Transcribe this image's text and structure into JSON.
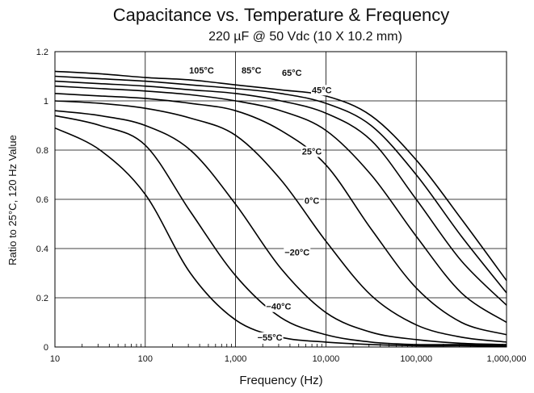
{
  "chart_data": {
    "type": "line",
    "title": "Capacitance vs. Temperature & Frequency",
    "subtitle": "220 µF @ 50 Vdc (10 X 10.2 mm)",
    "xlabel": "Frequency (Hz)",
    "ylabel": "Ratio to 25°C, 120 Hz Value",
    "x_scale": "log",
    "xlim": [
      10,
      1000000
    ],
    "ylim": [
      0,
      1.2
    ],
    "x_ticks": [
      {
        "value": 10,
        "label": "10"
      },
      {
        "value": 100,
        "label": "100"
      },
      {
        "value": 1000,
        "label": "1,000"
      },
      {
        "value": 10000,
        "label": "10,000"
      },
      {
        "value": 100000,
        "label": "100,000"
      },
      {
        "value": 1000000,
        "label": "1,000,000"
      }
    ],
    "y_ticks": [
      {
        "value": 0,
        "label": "0"
      },
      {
        "value": 0.2,
        "label": "0.2"
      },
      {
        "value": 0.4,
        "label": "0.4"
      },
      {
        "value": 0.6,
        "label": "0.6"
      },
      {
        "value": 0.8,
        "label": "0.8"
      },
      {
        "value": 1,
        "label": "1"
      },
      {
        "value": 1.2,
        "label": "1.2"
      }
    ],
    "grid": true,
    "series": [
      {
        "name": "105°C",
        "x": [
          10,
          31.6,
          100,
          316,
          1000,
          3162,
          10000,
          31623,
          100000,
          316228,
          1000000
        ],
        "y": [
          1.12,
          1.11,
          1.095,
          1.085,
          1.065,
          1.045,
          1.02,
          0.94,
          0.76,
          0.52,
          0.27
        ],
        "label_at": [
          420,
          1.115
        ]
      },
      {
        "name": "85°C",
        "x": [
          10,
          31.6,
          100,
          316,
          1000,
          3162,
          10000,
          31623,
          100000,
          316228,
          1000000
        ],
        "y": [
          1.1,
          1.09,
          1.08,
          1.065,
          1.05,
          1.03,
          0.99,
          0.9,
          0.7,
          0.45,
          0.22
        ],
        "label_at": [
          1500,
          1.115
        ]
      },
      {
        "name": "65°C",
        "x": [
          10,
          31.6,
          100,
          316,
          1000,
          3162,
          10000,
          31623,
          100000,
          316228,
          1000000
        ],
        "y": [
          1.08,
          1.07,
          1.06,
          1.045,
          1.03,
          1.0,
          0.95,
          0.84,
          0.6,
          0.35,
          0.17
        ],
        "label_at": [
          4200,
          1.105
        ]
      },
      {
        "name": "45°C",
        "x": [
          10,
          31.6,
          100,
          316,
          1000,
          3162,
          10000,
          31623,
          100000,
          316228,
          1000000
        ],
        "y": [
          1.06,
          1.05,
          1.04,
          1.025,
          1.0,
          0.96,
          0.88,
          0.7,
          0.45,
          0.22,
          0.1
        ],
        "label_at": [
          9000,
          1.035
        ]
      },
      {
        "name": "25°C",
        "x": [
          10,
          31.6,
          100,
          316,
          1000,
          3162,
          10000,
          31623,
          100000,
          316228,
          1000000
        ],
        "y": [
          1.03,
          1.02,
          1.01,
          0.99,
          0.96,
          0.88,
          0.74,
          0.48,
          0.24,
          0.1,
          0.05
        ],
        "label_at": [
          7000,
          0.785
        ]
      },
      {
        "name": "0°C",
        "x": [
          10,
          31.6,
          100,
          316,
          1000,
          3162,
          10000,
          31623,
          100000,
          316228,
          1000000
        ],
        "y": [
          1.0,
          0.99,
          0.97,
          0.93,
          0.86,
          0.68,
          0.43,
          0.21,
          0.09,
          0.04,
          0.02
        ],
        "label_at": [
          7000,
          0.585
        ]
      },
      {
        "name": "−20°C",
        "x": [
          10,
          31.6,
          100,
          316,
          1000,
          3162,
          10000,
          31623,
          100000,
          316228,
          1000000
        ],
        "y": [
          0.96,
          0.94,
          0.9,
          0.8,
          0.58,
          0.32,
          0.14,
          0.06,
          0.03,
          0.015,
          0.01
        ],
        "label_at": [
          4800,
          0.375
        ]
      },
      {
        "name": "−40°C",
        "x": [
          10,
          31.6,
          100,
          316,
          1000,
          3162,
          10000,
          31623,
          100000,
          316228,
          1000000
        ],
        "y": [
          0.94,
          0.9,
          0.82,
          0.55,
          0.29,
          0.12,
          0.05,
          0.02,
          0.01,
          0.01,
          0.005
        ],
        "label_at": [
          3000,
          0.155
        ]
      },
      {
        "name": "−55°C",
        "x": [
          10,
          31.6,
          100,
          316,
          1000,
          3162,
          10000,
          31623,
          100000,
          316228,
          1000000
        ],
        "y": [
          0.89,
          0.8,
          0.62,
          0.3,
          0.11,
          0.04,
          0.02,
          0.01,
          0.005,
          0.005,
          0.003
        ],
        "label_at": [
          2400,
          0.03
        ]
      }
    ]
  }
}
